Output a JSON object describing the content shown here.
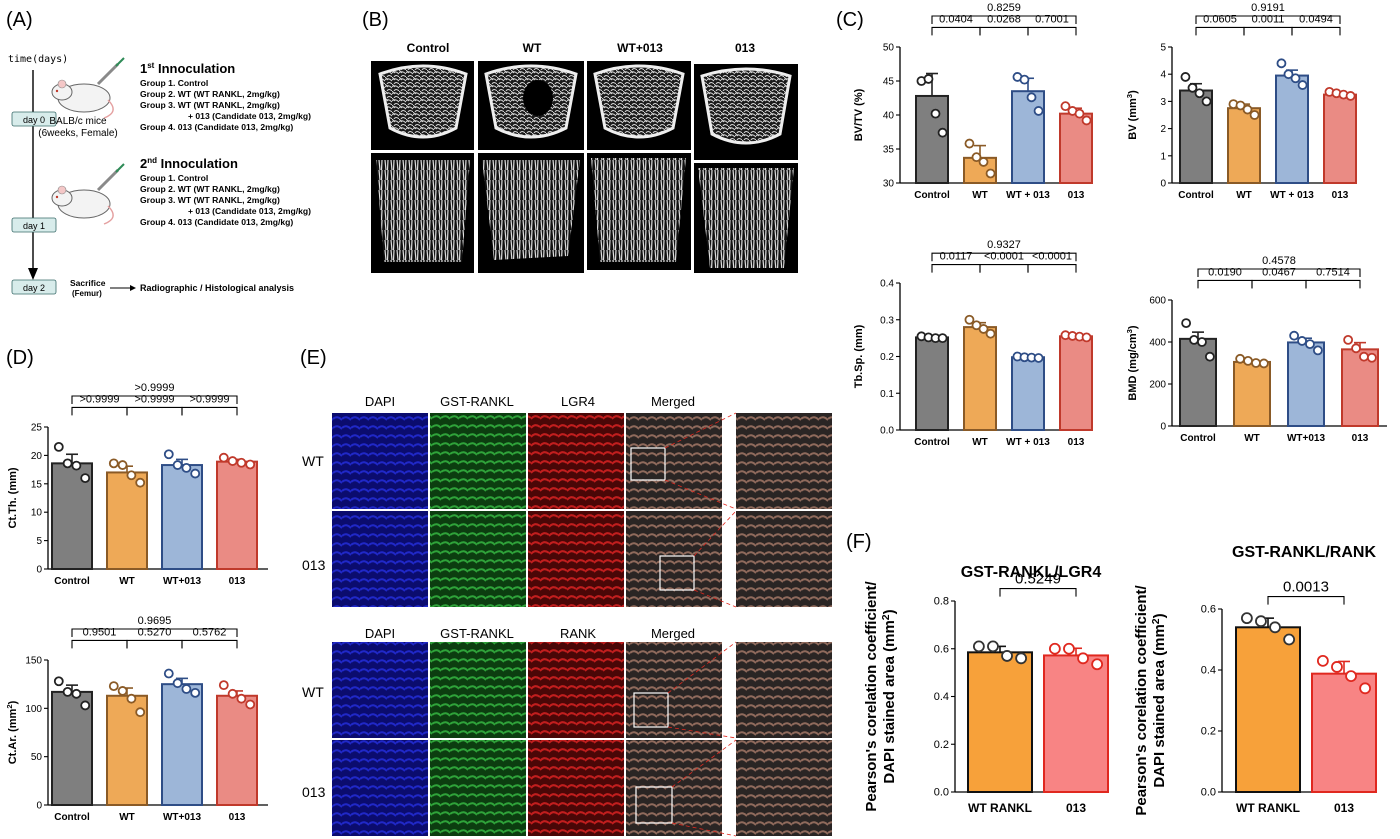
{
  "panels": {
    "A": "(A)",
    "B": "(B)",
    "C": "(C)",
    "D": "(D)",
    "E": "(E)",
    "F": "(F)"
  },
  "schematic": {
    "time_label": "time(days)",
    "first_title": "1",
    "first_sup": "st",
    "first_rest": " Innoculation",
    "second_title": "2",
    "second_sup": "nd",
    "second_rest": " Innoculation",
    "first_groups": [
      "Group 1. Control",
      "Group 2. WT (WT RANKL, 2mg/kg)",
      "Group 3. WT (WT RANKL, 2mg/kg)",
      "+ 013 (Candidate 013, 2mg/kg)",
      "Group 4. 013 (Candidate 013, 2mg/kg)"
    ],
    "second_groups": [
      "Group 1. Control",
      "Group 2. WT (WT RANKL, 2mg/kg)",
      "Group 3. WT (WT RANKL, 2mg/kg)",
      "+ 013 (Candidate 013, 2mg/kg)",
      "Group 4. 013 (Candidate 013, 2mg/kg)"
    ],
    "mice_label_1": "BALB/c mice",
    "mice_label_2": "(6weeks, Female)",
    "days": [
      "day 0",
      "day 1",
      "day 2"
    ],
    "sacrifice_1": "Sacrifice",
    "sacrifice_2": "(Femur)",
    "analysis": "Radiographic / Histological analysis"
  },
  "microct": {
    "columns": [
      "Control",
      "WT",
      "WT+013",
      "013"
    ]
  },
  "stain_top": {
    "columns": [
      "DAPI",
      "GST-RANKL",
      "LGR4",
      "Merged"
    ],
    "rows": [
      "WT",
      "013"
    ]
  },
  "stain_bottom": {
    "columns": [
      "DAPI",
      "GST-RANKL",
      "RANK",
      "Merged"
    ],
    "rows": [
      "WT",
      "013"
    ]
  },
  "colors": {
    "control": "#7f7f7f",
    "control_dark": "#222222",
    "wt": "#eea957",
    "wt_dark": "#8a5a26",
    "wt013": "#9db6d8",
    "wt013_dark": "#2e4d86",
    "c013": "#ea8b84",
    "c013_dark": "#c0392b",
    "f_wt": "#f7a13a",
    "f_013": "#f88484",
    "f_013_dark": "#e0281f"
  },
  "chart_data": [
    {
      "id": "bvtv",
      "type": "bar",
      "categories": [
        "Control",
        "WT",
        "WT + 013",
        "013"
      ],
      "values": [
        42.8,
        33.7,
        43.5,
        40.2
      ],
      "errors": [
        3.3,
        1.8,
        1.9,
        0.8
      ],
      "points": [
        [
          45,
          45.3,
          40.2,
          37.4
        ],
        [
          35.8,
          33.8,
          33.1,
          31.4
        ],
        [
          45.6,
          45.2,
          42.6,
          40.6
        ],
        [
          41.3,
          40.6,
          40.2,
          39.2
        ]
      ],
      "ylabel": "BV/TV (%)",
      "ylim": [
        30,
        50
      ],
      "yticks": [
        30,
        35,
        40,
        45,
        50
      ],
      "comparisons": [
        {
          "from": 0,
          "to": 3,
          "label": "0.8259",
          "level": 2
        },
        {
          "from": 0,
          "to": 1,
          "label": "0.0404",
          "level": 1
        },
        {
          "from": 1,
          "to": 2,
          "label": "0.0268",
          "level": 1
        },
        {
          "from": 2,
          "to": 3,
          "label": "0.7001",
          "level": 1
        }
      ]
    },
    {
      "id": "bv",
      "type": "bar",
      "categories": [
        "Control",
        "WT",
        "WT + 013",
        "013"
      ],
      "values": [
        3.4,
        2.75,
        3.95,
        3.25
      ],
      "errors": [
        0.25,
        0.15,
        0.2,
        0.05
      ],
      "points": [
        [
          3.9,
          3.5,
          3.3,
          3.0
        ],
        [
          2.9,
          2.85,
          2.7,
          2.5
        ],
        [
          4.4,
          4.0,
          3.85,
          3.6
        ],
        [
          3.35,
          3.3,
          3.25,
          3.2
        ]
      ],
      "ylabel": "BV (mm",
      "ylabel_sup": "3",
      "ylabel_end": ")",
      "ylim": [
        0,
        5
      ],
      "yticks": [
        0,
        1,
        2,
        3,
        4,
        5
      ],
      "comparisons": [
        {
          "from": 0,
          "to": 3,
          "label": "0.9191",
          "level": 2
        },
        {
          "from": 0,
          "to": 1,
          "label": "0.0605",
          "level": 1
        },
        {
          "from": 1,
          "to": 2,
          "label": "0.0011",
          "level": 1
        },
        {
          "from": 2,
          "to": 3,
          "label": "0.0494",
          "level": 1
        }
      ]
    },
    {
      "id": "tbsp",
      "type": "bar",
      "categories": [
        "Control",
        "WT",
        "WT + 013",
        "013"
      ],
      "values": [
        0.252,
        0.28,
        0.198,
        0.255
      ],
      "errors": [
        0.003,
        0.012,
        0.003,
        0.003
      ],
      "points": [
        [
          0.255,
          0.252,
          0.25,
          0.25
        ],
        [
          0.3,
          0.285,
          0.275,
          0.262
        ],
        [
          0.2,
          0.198,
          0.197,
          0.196
        ],
        [
          0.258,
          0.256,
          0.254,
          0.252
        ]
      ],
      "ylabel": "Tb.Sp. (mm)",
      "ylim": [
        0,
        0.4
      ],
      "yticks": [
        0.0,
        0.1,
        0.2,
        0.3,
        0.4
      ],
      "tick_decimals": 1,
      "comparisons": [
        {
          "from": 0,
          "to": 3,
          "label": "0.9327",
          "level": 2
        },
        {
          "from": 0,
          "to": 1,
          "label": "0.0117",
          "level": 1
        },
        {
          "from": 1,
          "to": 2,
          "label": "<0.0001",
          "level": 1
        },
        {
          "from": 2,
          "to": 3,
          "label": "<0.0001",
          "level": 1
        }
      ]
    },
    {
      "id": "bmd",
      "type": "bar",
      "categories": [
        "Control",
        "WT",
        "WT+013",
        "013"
      ],
      "values": [
        415,
        305,
        398,
        365
      ],
      "errors": [
        32,
        8,
        20,
        32
      ],
      "points": [
        [
          490,
          410,
          400,
          330
        ],
        [
          320,
          310,
          300,
          298
        ],
        [
          430,
          405,
          390,
          360
        ],
        [
          410,
          370,
          330,
          325
        ]
      ],
      "ylabel": "BMD (mg/cm",
      "ylabel_sup": "3",
      "ylabel_end": ")",
      "ylim": [
        0,
        600
      ],
      "yticks": [
        0,
        200,
        400,
        600
      ],
      "comparisons": [
        {
          "from": 0,
          "to": 3,
          "label": "0.4578",
          "level": 2
        },
        {
          "from": 0,
          "to": 1,
          "label": "0.0190",
          "level": 1
        },
        {
          "from": 1,
          "to": 2,
          "label": "0.0467",
          "level": 1
        },
        {
          "from": 2,
          "to": 3,
          "label": "0.7514",
          "level": 1
        }
      ]
    },
    {
      "id": "ctth",
      "type": "bar",
      "categories": [
        "Control",
        "WT",
        "WT+013",
        "013"
      ],
      "values": [
        18.6,
        17.0,
        18.3,
        18.9
      ],
      "errors": [
        1.6,
        1.1,
        1.0,
        0.4
      ],
      "points": [
        [
          21.5,
          18.6,
          18.2,
          16.0
        ],
        [
          18.6,
          18.3,
          16.5,
          15.2
        ],
        [
          20.2,
          18.3,
          17.8,
          16.8
        ],
        [
          19.6,
          19.0,
          18.7,
          18.4
        ]
      ],
      "ylabel": "Ct.Th. (mm)",
      "ylim": [
        0,
        25
      ],
      "yticks": [
        0,
        5,
        10,
        15,
        20,
        25
      ],
      "comparisons": [
        {
          "from": 0,
          "to": 3,
          "label": ">0.9999",
          "level": 2
        },
        {
          "from": 0,
          "to": 1,
          "label": ">0.9999",
          "level": 1
        },
        {
          "from": 1,
          "to": 2,
          "label": ">0.9999",
          "level": 1
        },
        {
          "from": 2,
          "to": 3,
          "label": ">0.9999",
          "level": 1
        }
      ]
    },
    {
      "id": "ctar",
      "type": "bar",
      "categories": [
        "Control",
        "WT",
        "WT+013",
        "013"
      ],
      "values": [
        117,
        113,
        125,
        113
      ],
      "errors": [
        7,
        8,
        6,
        5
      ],
      "points": [
        [
          128,
          117,
          115,
          103
        ],
        [
          123,
          118,
          110,
          96
        ],
        [
          136,
          126,
          120,
          116
        ],
        [
          124,
          115,
          110,
          104
        ]
      ],
      "ylabel": "Ct.Ar. (mm",
      "ylabel_sup": "2",
      "ylabel_end": ")",
      "ylim": [
        0,
        150
      ],
      "yticks": [
        0,
        50,
        100,
        150
      ],
      "comparisons": [
        {
          "from": 0,
          "to": 3,
          "label": "0.9695",
          "level": 2
        },
        {
          "from": 0,
          "to": 1,
          "label": "0.9501",
          "level": 1
        },
        {
          "from": 1,
          "to": 2,
          "label": "0.5270",
          "level": 1
        },
        {
          "from": 2,
          "to": 3,
          "label": "0.5762",
          "level": 1
        }
      ]
    },
    {
      "id": "flgr4",
      "type": "bar",
      "title": "GST-RANKL/LGR4",
      "categories": [
        "WT RANKL",
        "013"
      ],
      "values": [
        0.585,
        0.572
      ],
      "errors": [
        0.025,
        0.03
      ],
      "points": [
        [
          0.61,
          0.61,
          0.57,
          0.56
        ],
        [
          0.6,
          0.6,
          0.56,
          0.535
        ]
      ],
      "ylabel": "Pearson's corelation coefficient/",
      "ylabel2": "DAPI stained area (mm",
      "ylabel2_sup": "2",
      "ylabel2_end": ")",
      "ylim": [
        0,
        0.8
      ],
      "yticks": [
        0.0,
        0.2,
        0.4,
        0.6,
        0.8
      ],
      "tick_decimals": 1,
      "comparisons": [
        {
          "from": 0,
          "to": 1,
          "label": "0.5249",
          "level": 1
        }
      ]
    },
    {
      "id": "frank",
      "type": "bar",
      "title": "GST-RANKL/RANK",
      "categories": [
        "WT RANKL",
        "013"
      ],
      "values": [
        0.54,
        0.388
      ],
      "errors": [
        0.03,
        0.04
      ],
      "points": [
        [
          0.57,
          0.56,
          0.54,
          0.5
        ],
        [
          0.43,
          0.41,
          0.38,
          0.34
        ]
      ],
      "ylabel": "Pearson's corelation coefficient/",
      "ylabel2": "DAPI stained area (mm",
      "ylabel2_sup": "2",
      "ylabel2_end": ")",
      "ylim": [
        0,
        0.6
      ],
      "yticks": [
        0.0,
        0.2,
        0.4,
        0.6
      ],
      "tick_decimals": 1,
      "comparisons": [
        {
          "from": 0,
          "to": 1,
          "label": "0.0013",
          "level": 1
        }
      ]
    }
  ]
}
